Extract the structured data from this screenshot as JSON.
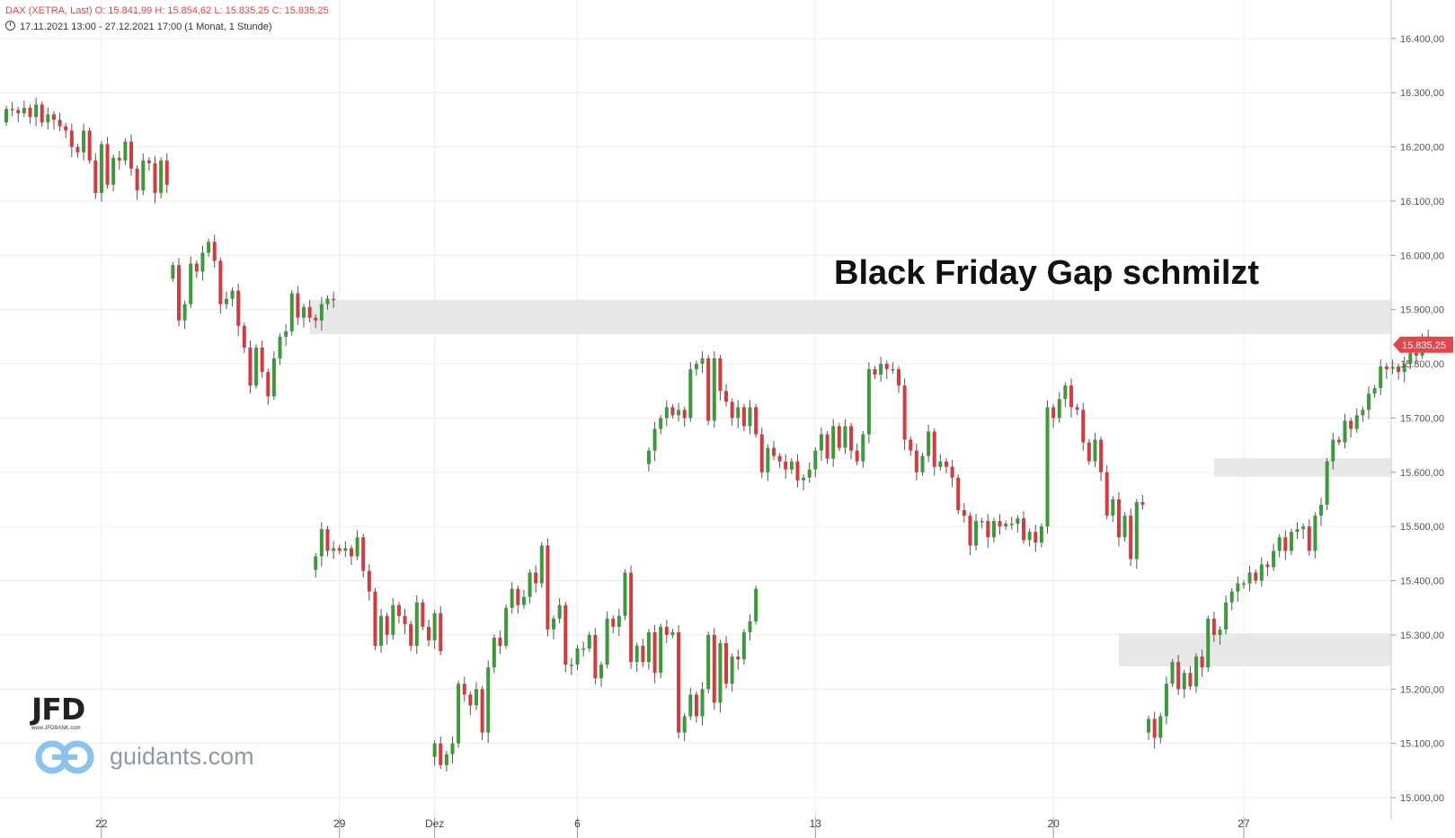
{
  "header": {
    "line1": "DAX (XETRA, Last)   O: 15.841,99   H: 15.854,62   L: 15.835,25   C: 15.835,25",
    "line2": "17.11.2021 13:00 - 27.12.2021 17:00   (1 Monat, 1 Stunde)"
  },
  "annotation": "Black Friday Gap schmilzt",
  "branding": {
    "logo": "JFD",
    "logo_sub": "www.JFDBANK.com",
    "site": "guidants.com"
  },
  "colors": {
    "up": "#3c9a3a",
    "down": "#d63a3f",
    "gap_zone": "#e8e8e8",
    "grid": "#ececec",
    "price_tag": "#e0474c"
  },
  "chart_data": {
    "type": "candlestick",
    "title": "DAX (XETRA, Last)",
    "interval": "1 Stunde",
    "ylim": [
      14960,
      16530
    ],
    "y_ticks": [
      15000,
      15100,
      15200,
      15300,
      15400,
      15500,
      15600,
      15700,
      15800,
      15900,
      16000,
      16100,
      16200,
      16300,
      16400
    ],
    "y_tick_labels": [
      "15.000,00",
      "15.100,00",
      "15.200,00",
      "15.300,00",
      "15.400,00",
      "15.500,00",
      "15.600,00",
      "15.700,00",
      "15.800,00",
      "15.900,00",
      "16.000,00",
      "16.100,00",
      "16.200,00",
      "16.300,00",
      "16.400,00"
    ],
    "x_ticks": [
      {
        "label": "22",
        "hour_index": 16
      },
      {
        "label": "29",
        "hour_index": 56
      },
      {
        "label": "Dez",
        "hour_index": 72
      },
      {
        "label": "6",
        "hour_index": 96
      },
      {
        "label": "13",
        "hour_index": 136
      },
      {
        "label": "20",
        "hour_index": 176
      },
      {
        "label": "27",
        "hour_index": 208
      }
    ],
    "current_price": 15835.25,
    "current_price_label": "15.835,25",
    "gap_zones": [
      {
        "low": 15855,
        "high": 15918,
        "from_hour_index": 51
      },
      {
        "low": 15592,
        "high": 15626,
        "from_hour_index": 203
      },
      {
        "low": 15242,
        "high": 15303,
        "from_hour_index": 187
      }
    ],
    "segments": [
      {
        "start_index": 0,
        "closes": [
          16270,
          16268,
          16262,
          16272,
          16255,
          16278,
          16245,
          16260,
          16250,
          16238,
          16230,
          16200,
          16190,
          16230,
          16175,
          16115,
          16205,
          16130,
          16180,
          16175,
          16210,
          16160,
          16120,
          16175,
          16170,
          16115,
          16175,
          16130
        ]
      },
      {
        "start_index": 28,
        "closes": [
          15982,
          15880,
          15910,
          15985,
          15970,
          16005,
          16025,
          15990,
          15910,
          15920,
          15935,
          15870,
          15830,
          15760,
          15830,
          15785,
          15740,
          15810,
          15850,
          15860,
          15930,
          15885,
          15905,
          15885,
          15880,
          15910,
          15920,
          15918
        ]
      },
      {
        "start_index": 52,
        "closes": [
          15445,
          15495,
          15455,
          15460,
          15455,
          15460,
          15445,
          15480,
          15418,
          15380,
          15280,
          15335,
          15300,
          15355,
          15335,
          15320,
          15280,
          15360,
          15315,
          15290,
          15340,
          15270
        ]
      },
      {
        "start_index": 72,
        "closes": [
          15100,
          15060,
          15080,
          15100,
          15210,
          15190,
          15170,
          15200,
          15120,
          15240,
          15295,
          15280,
          15350,
          15385,
          15355,
          15370,
          15415,
          15395,
          15465,
          15310,
          15330,
          15355,
          15245,
          15245,
          15275,
          15275,
          15300,
          15220,
          15245,
          15330,
          15315,
          15335,
          15415,
          15250,
          15280,
          15250,
          15305,
          15230,
          15315,
          15300,
          15305,
          15120,
          15150,
          15190,
          15150,
          15200,
          15300,
          15175,
          15285,
          15210,
          15260,
          15255,
          15305,
          15325,
          15385
        ]
      },
      {
        "start_index": 108,
        "closes": [
          15640,
          15680,
          15700,
          15720,
          15705,
          15715,
          15700,
          15790,
          15800,
          15810,
          15695,
          15810,
          15750,
          15730,
          15700,
          15720,
          15685,
          15720,
          15670,
          15600,
          15645,
          15630,
          15620,
          15605,
          15620,
          15585,
          15590,
          15605,
          15640,
          15670,
          15625,
          15685,
          15645,
          15685,
          15640,
          15620,
          15670,
          15790,
          15780,
          15800,
          15790,
          15790,
          15760,
          15660,
          15640,
          15600,
          15630,
          15675,
          15610,
          15620,
          15610,
          15590,
          15530,
          15520,
          15465,
          15510,
          15510,
          15480,
          15510,
          15500,
          15505,
          15505,
          15515,
          15475,
          15490,
          15470,
          15500,
          15720,
          15700,
          15735,
          15760,
          15720,
          15715,
          15655,
          15620,
          15660,
          15600,
          15520,
          15550,
          15480,
          15520,
          15440,
          15545,
          15540
        ]
      },
      {
        "start_index": 192,
        "closes": [
          15145,
          15110,
          15150,
          15210,
          15250,
          15200,
          15230,
          15205,
          15260,
          15240,
          15330,
          15300,
          15310,
          15360,
          15380,
          15395,
          15395,
          15415,
          15400,
          15430,
          15425,
          15455,
          15480,
          15455,
          15490,
          15495,
          15500,
          15455,
          15520,
          15540,
          15620,
          15660,
          15655,
          15695,
          15680,
          15705,
          15715,
          15745,
          15755,
          15795,
          15790,
          15795,
          15785,
          15800,
          15820,
          15815,
          15850,
          15835
        ]
      }
    ]
  }
}
